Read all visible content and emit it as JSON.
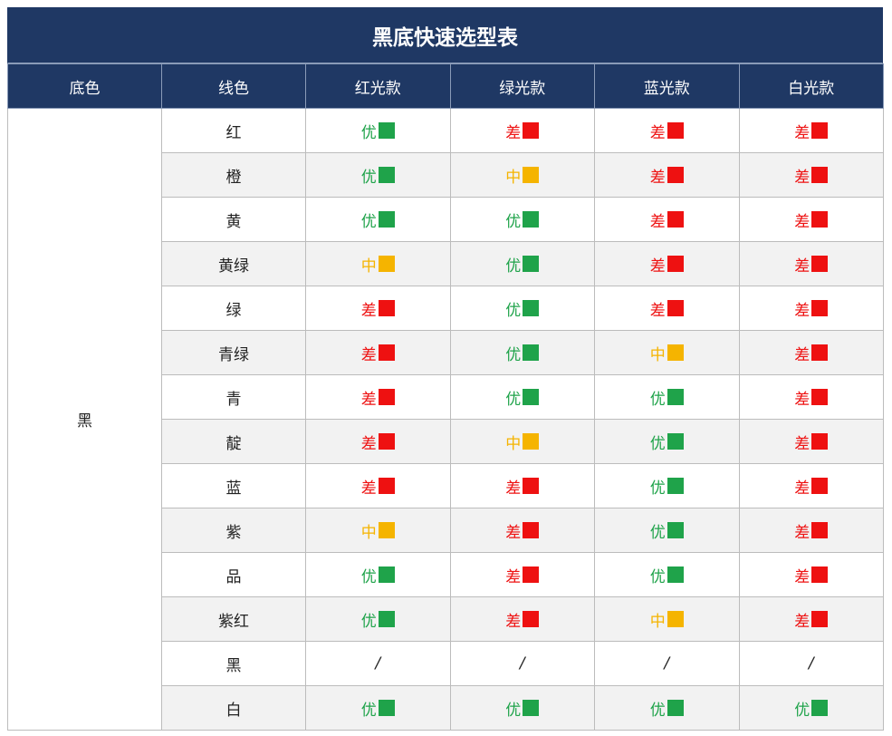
{
  "title": "黑底快速选型表",
  "headers": [
    "底色",
    "线色",
    "红光款",
    "绿光款",
    "蓝光款",
    "白光款"
  ],
  "base_color": "黑",
  "legend_colors": {
    "优": "#1fa34a",
    "中": "#f5b400",
    "差": "#ee1111"
  },
  "rows": [
    {
      "line": "红",
      "ratings": [
        "优",
        "差",
        "差",
        "差"
      ]
    },
    {
      "line": "橙",
      "ratings": [
        "优",
        "中",
        "差",
        "差"
      ]
    },
    {
      "line": "黄",
      "ratings": [
        "优",
        "优",
        "差",
        "差"
      ]
    },
    {
      "line": "黄绿",
      "ratings": [
        "中",
        "优",
        "差",
        "差"
      ]
    },
    {
      "line": "绿",
      "ratings": [
        "差",
        "优",
        "差",
        "差"
      ]
    },
    {
      "line": "青绿",
      "ratings": [
        "差",
        "优",
        "中",
        "差"
      ]
    },
    {
      "line": "青",
      "ratings": [
        "差",
        "优",
        "优",
        "差"
      ]
    },
    {
      "line": "靛",
      "ratings": [
        "差",
        "中",
        "优",
        "差"
      ]
    },
    {
      "line": "蓝",
      "ratings": [
        "差",
        "差",
        "优",
        "差"
      ]
    },
    {
      "line": "紫",
      "ratings": [
        "中",
        "差",
        "优",
        "差"
      ]
    },
    {
      "line": "品",
      "ratings": [
        "优",
        "差",
        "优",
        "差"
      ]
    },
    {
      "line": "紫红",
      "ratings": [
        "优",
        "差",
        "中",
        "差"
      ]
    },
    {
      "line": "黑",
      "ratings": [
        "/",
        "/",
        "/",
        "/"
      ]
    },
    {
      "line": "白",
      "ratings": [
        "优",
        "优",
        "优",
        "优"
      ]
    }
  ]
}
